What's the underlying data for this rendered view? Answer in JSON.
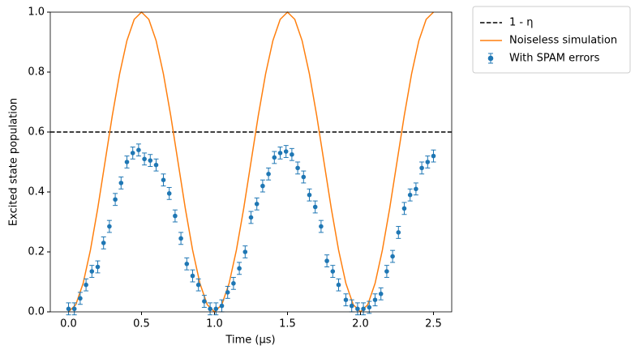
{
  "chart_data": {
    "type": "line",
    "xlabel": "Time (μs)",
    "ylabel": "Excited state population",
    "xlim": [
      -0.125,
      2.625
    ],
    "ylim": [
      0,
      1
    ],
    "xticks": [
      {
        "value": 0,
        "label": "0.0"
      },
      {
        "value": 0.5,
        "label": "0.5"
      },
      {
        "value": 1,
        "label": "1.0"
      },
      {
        "value": 1.5,
        "label": "1.5"
      },
      {
        "value": 2,
        "label": "2.0"
      },
      {
        "value": 2.5,
        "label": "2.5"
      }
    ],
    "yticks": [
      {
        "value": 0,
        "label": "0.0"
      },
      {
        "value": 0.2,
        "label": "0.2"
      },
      {
        "value": 0.4,
        "label": "0.4"
      },
      {
        "value": 0.6,
        "label": "0.6"
      },
      {
        "value": 0.8,
        "label": "0.8"
      },
      {
        "value": 1,
        "label": "1.0"
      }
    ],
    "hline": {
      "name": "1 - η",
      "value": 0.6,
      "color": "#000000"
    },
    "series": [
      {
        "name": "Noiseless simulation",
        "color": "#ff7f0e",
        "style": "line",
        "x": [
          0,
          0.05,
          0.1,
          0.15,
          0.2,
          0.25,
          0.3,
          0.35,
          0.4,
          0.45,
          0.5,
          0.55,
          0.6,
          0.65,
          0.7,
          0.75,
          0.8,
          0.85,
          0.9,
          0.95,
          1,
          1.05,
          1.1,
          1.15,
          1.2,
          1.25,
          1.3,
          1.35,
          1.4,
          1.45,
          1.5,
          1.55,
          1.6,
          1.65,
          1.7,
          1.75,
          1.8,
          1.85,
          1.9,
          1.95,
          2,
          2.05,
          2.1,
          2.15,
          2.2,
          2.25,
          2.3,
          2.35,
          2.4,
          2.45,
          2.5
        ],
        "values": [
          0,
          0.024,
          0.095,
          0.206,
          0.345,
          0.5,
          0.655,
          0.794,
          0.905,
          0.976,
          1,
          0.976,
          0.905,
          0.794,
          0.655,
          0.5,
          0.345,
          0.206,
          0.095,
          0.024,
          0,
          0.024,
          0.095,
          0.206,
          0.345,
          0.5,
          0.655,
          0.794,
          0.905,
          0.976,
          1,
          0.976,
          0.905,
          0.794,
          0.655,
          0.5,
          0.345,
          0.206,
          0.095,
          0.024,
          0,
          0.024,
          0.095,
          0.206,
          0.345,
          0.5,
          0.655,
          0.794,
          0.905,
          0.976,
          1
        ]
      },
      {
        "name": "With SPAM errors",
        "color": "#1f77b4",
        "style": "errorbar",
        "x": [
          0,
          0.04,
          0.08,
          0.12,
          0.16,
          0.2,
          0.24,
          0.28,
          0.32,
          0.36,
          0.4,
          0.44,
          0.48,
          0.52,
          0.56,
          0.6,
          0.65,
          0.69,
          0.73,
          0.77,
          0.81,
          0.85,
          0.89,
          0.93,
          0.97,
          1.01,
          1.05,
          1.09,
          1.13,
          1.17,
          1.21,
          1.25,
          1.29,
          1.33,
          1.37,
          1.41,
          1.45,
          1.49,
          1.53,
          1.57,
          1.61,
          1.65,
          1.69,
          1.73,
          1.77,
          1.81,
          1.85,
          1.9,
          1.94,
          1.98,
          2.02,
          2.06,
          2.1,
          2.14,
          2.18,
          2.22,
          2.26,
          2.3,
          2.34,
          2.38,
          2.42,
          2.46,
          2.5
        ],
        "values": [
          0.01,
          0.01,
          0.045,
          0.09,
          0.135,
          0.15,
          0.23,
          0.285,
          0.375,
          0.43,
          0.5,
          0.53,
          0.54,
          0.51,
          0.505,
          0.49,
          0.44,
          0.395,
          0.32,
          0.245,
          0.16,
          0.12,
          0.09,
          0.035,
          0.01,
          0.01,
          0.02,
          0.065,
          0.095,
          0.145,
          0.2,
          0.315,
          0.36,
          0.42,
          0.46,
          0.515,
          0.53,
          0.535,
          0.525,
          0.48,
          0.45,
          0.39,
          0.35,
          0.285,
          0.17,
          0.135,
          0.09,
          0.04,
          0.02,
          0.01,
          0.01,
          0.015,
          0.04,
          0.06,
          0.135,
          0.185,
          0.265,
          0.345,
          0.39,
          0.41,
          0.48,
          0.5,
          0.52
        ],
        "errors": [
          0.02,
          0.02,
          0.02,
          0.02,
          0.02,
          0.02,
          0.02,
          0.02,
          0.02,
          0.02,
          0.02,
          0.02,
          0.02,
          0.02,
          0.02,
          0.02,
          0.02,
          0.02,
          0.02,
          0.02,
          0.02,
          0.02,
          0.02,
          0.02,
          0.02,
          0.02,
          0.02,
          0.02,
          0.02,
          0.02,
          0.02,
          0.02,
          0.02,
          0.02,
          0.02,
          0.02,
          0.02,
          0.02,
          0.02,
          0.02,
          0.02,
          0.02,
          0.02,
          0.02,
          0.02,
          0.02,
          0.02,
          0.02,
          0.02,
          0.02,
          0.02,
          0.02,
          0.02,
          0.02,
          0.02,
          0.02,
          0.02,
          0.02,
          0.02,
          0.02,
          0.02,
          0.02,
          0.02
        ]
      }
    ]
  }
}
